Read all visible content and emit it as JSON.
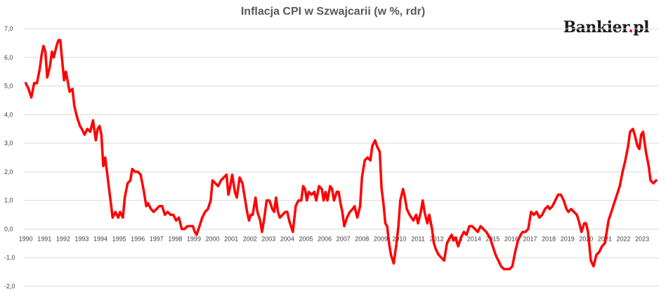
{
  "chart_data": {
    "type": "line",
    "title": "Inflacja CPI w Szwajcarii (w %, rdr)",
    "xlabel": "",
    "ylabel": "",
    "ylim": [
      -2.0,
      7.0
    ],
    "y_ticks": [
      "7,0",
      "6,0",
      "5,0",
      "4,0",
      "3,0",
      "2,0",
      "1,0",
      "0,0",
      "-1,0",
      "-2,0"
    ],
    "x_ticks": [
      "1990",
      "1991",
      "1992",
      "1993",
      "1994",
      "1995",
      "1996",
      "1997",
      "1998",
      "1999",
      "2000",
      "2001",
      "2002",
      "2003",
      "2004",
      "2005",
      "2006",
      "2007",
      "2008",
      "2009",
      "2010",
      "2011",
      "2012",
      "2013",
      "2014",
      "2015",
      "2016",
      "2017",
      "2018",
      "2019",
      "2020",
      "2021",
      "2022",
      "2023"
    ],
    "grid": true,
    "series": [
      {
        "color": "#ff0000",
        "points": [
          [
            1990.0,
            5.1
          ],
          [
            1990.15,
            4.9
          ],
          [
            1990.3,
            4.6
          ],
          [
            1990.45,
            5.1
          ],
          [
            1990.6,
            5.1
          ],
          [
            1990.75,
            5.6
          ],
          [
            1990.85,
            6.1
          ],
          [
            1990.95,
            6.4
          ],
          [
            1991.05,
            6.2
          ],
          [
            1991.15,
            5.3
          ],
          [
            1991.3,
            5.7
          ],
          [
            1991.4,
            6.2
          ],
          [
            1991.5,
            6.0
          ],
          [
            1991.65,
            6.4
          ],
          [
            1991.75,
            6.6
          ],
          [
            1991.85,
            6.6
          ],
          [
            1991.95,
            5.9
          ],
          [
            1992.05,
            5.2
          ],
          [
            1992.15,
            5.5
          ],
          [
            1992.35,
            4.8
          ],
          [
            1992.5,
            4.9
          ],
          [
            1992.6,
            4.3
          ],
          [
            1992.75,
            3.9
          ],
          [
            1992.9,
            3.6
          ],
          [
            1993.0,
            3.5
          ],
          [
            1993.15,
            3.3
          ],
          [
            1993.3,
            3.5
          ],
          [
            1993.45,
            3.4
          ],
          [
            1993.6,
            3.8
          ],
          [
            1993.75,
            3.1
          ],
          [
            1993.85,
            3.5
          ],
          [
            1993.95,
            3.6
          ],
          [
            1994.05,
            3.3
          ],
          [
            1994.15,
            2.2
          ],
          [
            1994.25,
            2.5
          ],
          [
            1994.35,
            2.0
          ],
          [
            1994.5,
            1.2
          ],
          [
            1994.65,
            0.4
          ],
          [
            1994.8,
            0.6
          ],
          [
            1994.95,
            0.4
          ],
          [
            1995.05,
            0.6
          ],
          [
            1995.2,
            0.4
          ],
          [
            1995.3,
            1.1
          ],
          [
            1995.45,
            1.6
          ],
          [
            1995.6,
            1.7
          ],
          [
            1995.7,
            2.1
          ],
          [
            1995.85,
            2.0
          ],
          [
            1996.0,
            2.0
          ],
          [
            1996.15,
            1.9
          ],
          [
            1996.3,
            1.4
          ],
          [
            1996.45,
            0.8
          ],
          [
            1996.55,
            0.9
          ],
          [
            1996.7,
            0.7
          ],
          [
            1996.85,
            0.6
          ],
          [
            1997.0,
            0.7
          ],
          [
            1997.15,
            0.8
          ],
          [
            1997.3,
            0.8
          ],
          [
            1997.45,
            0.5
          ],
          [
            1997.6,
            0.6
          ],
          [
            1997.75,
            0.5
          ],
          [
            1997.9,
            0.5
          ],
          [
            1998.05,
            0.3
          ],
          [
            1998.2,
            0.4
          ],
          [
            1998.35,
            0.0
          ],
          [
            1998.5,
            0.0
          ],
          [
            1998.65,
            0.1
          ],
          [
            1998.8,
            0.1
          ],
          [
            1998.95,
            0.1
          ],
          [
            1999.05,
            -0.1
          ],
          [
            1999.15,
            -0.2
          ],
          [
            1999.3,
            0.1
          ],
          [
            1999.45,
            0.4
          ],
          [
            1999.6,
            0.6
          ],
          [
            1999.75,
            0.7
          ],
          [
            1999.9,
            1.0
          ],
          [
            2000.0,
            1.7
          ],
          [
            2000.15,
            1.6
          ],
          [
            2000.3,
            1.5
          ],
          [
            2000.45,
            1.7
          ],
          [
            2000.6,
            1.8
          ],
          [
            2000.75,
            1.9
          ],
          [
            2000.85,
            1.2
          ],
          [
            2000.95,
            1.5
          ],
          [
            2001.05,
            1.9
          ],
          [
            2001.2,
            1.3
          ],
          [
            2001.3,
            1.1
          ],
          [
            2001.45,
            1.8
          ],
          [
            2001.6,
            1.6
          ],
          [
            2001.75,
            1.0
          ],
          [
            2001.85,
            0.6
          ],
          [
            2001.95,
            0.3
          ],
          [
            2002.05,
            0.5
          ],
          [
            2002.15,
            0.5
          ],
          [
            2002.3,
            1.1
          ],
          [
            2002.4,
            0.6
          ],
          [
            2002.55,
            0.3
          ],
          [
            2002.65,
            -0.1
          ],
          [
            2002.75,
            0.3
          ],
          [
            2002.9,
            1.0
          ],
          [
            2003.05,
            1.0
          ],
          [
            2003.2,
            0.7
          ],
          [
            2003.3,
            0.6
          ],
          [
            2003.4,
            1.1
          ],
          [
            2003.5,
            0.6
          ],
          [
            2003.6,
            0.4
          ],
          [
            2003.75,
            0.5
          ],
          [
            2003.9,
            0.6
          ],
          [
            2004.0,
            0.6
          ],
          [
            2004.1,
            0.3
          ],
          [
            2004.2,
            0.1
          ],
          [
            2004.3,
            -0.1
          ],
          [
            2004.45,
            0.8
          ],
          [
            2004.6,
            1.0
          ],
          [
            2004.75,
            1.0
          ],
          [
            2004.85,
            1.5
          ],
          [
            2004.95,
            1.4
          ],
          [
            2005.05,
            1.0
          ],
          [
            2005.15,
            1.3
          ],
          [
            2005.3,
            1.2
          ],
          [
            2005.45,
            1.3
          ],
          [
            2005.55,
            1.0
          ],
          [
            2005.7,
            1.5
          ],
          [
            2005.85,
            1.4
          ],
          [
            2005.95,
            1.0
          ],
          [
            2006.05,
            1.3
          ],
          [
            2006.15,
            1.0
          ],
          [
            2006.3,
            1.5
          ],
          [
            2006.4,
            1.4
          ],
          [
            2006.5,
            1.0
          ],
          [
            2006.65,
            1.3
          ],
          [
            2006.75,
            1.3
          ],
          [
            2006.85,
            0.9
          ],
          [
            2006.95,
            0.6
          ],
          [
            2007.05,
            0.1
          ],
          [
            2007.2,
            0.4
          ],
          [
            2007.35,
            0.6
          ],
          [
            2007.5,
            0.7
          ],
          [
            2007.6,
            0.8
          ],
          [
            2007.75,
            0.4
          ],
          [
            2007.9,
            0.8
          ],
          [
            2008.0,
            1.8
          ],
          [
            2008.15,
            2.4
          ],
          [
            2008.3,
            2.5
          ],
          [
            2008.45,
            2.4
          ],
          [
            2008.55,
            2.9
          ],
          [
            2008.7,
            3.1
          ],
          [
            2008.8,
            2.9
          ],
          [
            2008.95,
            2.7
          ],
          [
            2009.05,
            1.4
          ],
          [
            2009.15,
            0.9
          ],
          [
            2009.25,
            0.2
          ],
          [
            2009.35,
            0.1
          ],
          [
            2009.45,
            -0.5
          ],
          [
            2009.55,
            -0.9
          ],
          [
            2009.7,
            -1.2
          ],
          [
            2009.85,
            -0.5
          ],
          [
            2009.95,
            0.1
          ],
          [
            2010.05,
            1.0
          ],
          [
            2010.2,
            1.4
          ],
          [
            2010.3,
            1.1
          ],
          [
            2010.4,
            0.7
          ],
          [
            2010.55,
            0.5
          ],
          [
            2010.75,
            0.3
          ],
          [
            2010.9,
            0.5
          ],
          [
            2011.0,
            0.2
          ],
          [
            2011.15,
            0.6
          ],
          [
            2011.25,
            1.0
          ],
          [
            2011.35,
            0.6
          ],
          [
            2011.5,
            0.2
          ],
          [
            2011.6,
            0.5
          ],
          [
            2011.75,
            0.0
          ],
          [
            2011.85,
            -0.5
          ],
          [
            2011.95,
            -0.7
          ],
          [
            2012.1,
            -0.9
          ],
          [
            2012.25,
            -1.0
          ],
          [
            2012.4,
            -1.1
          ],
          [
            2012.55,
            -0.5
          ],
          [
            2012.7,
            -0.3
          ],
          [
            2012.8,
            -0.2
          ],
          [
            2012.9,
            -0.4
          ],
          [
            2013.0,
            -0.3
          ],
          [
            2013.15,
            -0.6
          ],
          [
            2013.3,
            -0.3
          ],
          [
            2013.45,
            -0.1
          ],
          [
            2013.6,
            -0.2
          ],
          [
            2013.75,
            0.1
          ],
          [
            2013.9,
            0.1
          ],
          [
            2014.05,
            0.0
          ],
          [
            2014.2,
            -0.1
          ],
          [
            2014.35,
            0.1
          ],
          [
            2014.5,
            0.0
          ],
          [
            2014.65,
            -0.1
          ],
          [
            2014.85,
            -0.3
          ],
          [
            2015.0,
            -0.6
          ],
          [
            2015.15,
            -0.9
          ],
          [
            2015.3,
            -1.1
          ],
          [
            2015.45,
            -1.3
          ],
          [
            2015.6,
            -1.4
          ],
          [
            2015.75,
            -1.4
          ],
          [
            2015.9,
            -1.4
          ],
          [
            2016.05,
            -1.3
          ],
          [
            2016.2,
            -0.8
          ],
          [
            2016.35,
            -0.4
          ],
          [
            2016.5,
            -0.2
          ],
          [
            2016.6,
            -0.1
          ],
          [
            2016.75,
            -0.1
          ],
          [
            2016.9,
            0.0
          ],
          [
            2017.05,
            0.6
          ],
          [
            2017.2,
            0.5
          ],
          [
            2017.35,
            0.6
          ],
          [
            2017.5,
            0.4
          ],
          [
            2017.65,
            0.5
          ],
          [
            2017.8,
            0.7
          ],
          [
            2017.95,
            0.8
          ],
          [
            2018.05,
            0.7
          ],
          [
            2018.2,
            0.8
          ],
          [
            2018.35,
            1.0
          ],
          [
            2018.5,
            1.2
          ],
          [
            2018.65,
            1.2
          ],
          [
            2018.8,
            1.0
          ],
          [
            2018.95,
            0.7
          ],
          [
            2019.05,
            0.6
          ],
          [
            2019.2,
            0.7
          ],
          [
            2019.35,
            0.6
          ],
          [
            2019.5,
            0.5
          ],
          [
            2019.6,
            0.3
          ],
          [
            2019.75,
            -0.1
          ],
          [
            2019.9,
            0.2
          ],
          [
            2020.0,
            0.2
          ],
          [
            2020.1,
            -0.1
          ],
          [
            2020.25,
            -1.1
          ],
          [
            2020.4,
            -1.3
          ],
          [
            2020.55,
            -0.9
          ],
          [
            2020.7,
            -0.8
          ],
          [
            2020.85,
            -0.6
          ],
          [
            2021.0,
            -0.5
          ],
          [
            2021.1,
            -0.1
          ],
          [
            2021.2,
            0.3
          ],
          [
            2021.35,
            0.6
          ],
          [
            2021.5,
            0.9
          ],
          [
            2021.65,
            1.2
          ],
          [
            2021.8,
            1.5
          ],
          [
            2021.95,
            2.0
          ],
          [
            2022.1,
            2.4
          ],
          [
            2022.25,
            2.9
          ],
          [
            2022.35,
            3.4
          ],
          [
            2022.5,
            3.5
          ],
          [
            2022.6,
            3.3
          ],
          [
            2022.75,
            2.9
          ],
          [
            2022.85,
            2.8
          ],
          [
            2022.95,
            3.3
          ],
          [
            2023.05,
            3.4
          ],
          [
            2023.2,
            2.7
          ],
          [
            2023.35,
            2.2
          ],
          [
            2023.45,
            1.7
          ],
          [
            2023.6,
            1.6
          ],
          [
            2023.75,
            1.7
          ]
        ]
      }
    ]
  },
  "brand": {
    "name": "Bankier",
    "dot": ".",
    "suffix": "pl",
    "color": "#1a1a1a",
    "dot_color": "#e30613"
  },
  "colors": {
    "line": "#ff0000",
    "grid": "#d9d9d9",
    "axis_text": "#404040",
    "title": "#595959"
  }
}
